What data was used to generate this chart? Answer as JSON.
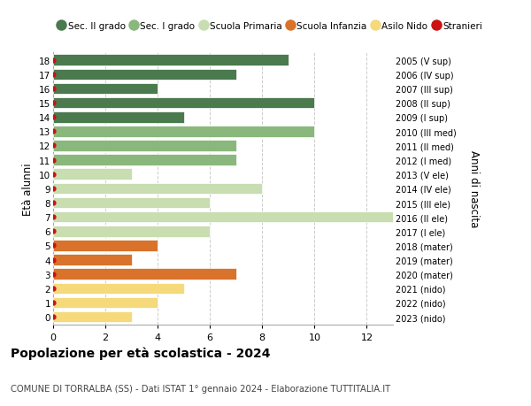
{
  "ages": [
    18,
    17,
    16,
    15,
    14,
    13,
    12,
    11,
    10,
    9,
    8,
    7,
    6,
    5,
    4,
    3,
    2,
    1,
    0
  ],
  "years": [
    "2005 (V sup)",
    "2006 (IV sup)",
    "2007 (III sup)",
    "2008 (II sup)",
    "2009 (I sup)",
    "2010 (III med)",
    "2011 (II med)",
    "2012 (I med)",
    "2013 (V ele)",
    "2014 (IV ele)",
    "2015 (III ele)",
    "2016 (II ele)",
    "2017 (I ele)",
    "2018 (mater)",
    "2019 (mater)",
    "2020 (mater)",
    "2021 (nido)",
    "2022 (nido)",
    "2023 (nido)"
  ],
  "values": [
    9,
    7,
    4,
    10,
    5,
    10,
    7,
    7,
    3,
    8,
    6,
    13,
    6,
    4,
    3,
    7,
    5,
    4,
    3
  ],
  "colors": [
    "#4a7a4e",
    "#4a7a4e",
    "#4a7a4e",
    "#4a7a4e",
    "#4a7a4e",
    "#8ab87c",
    "#8ab87c",
    "#8ab87c",
    "#c8ddb0",
    "#c8ddb0",
    "#c8ddb0",
    "#c8ddb0",
    "#c8ddb0",
    "#d9722a",
    "#d9722a",
    "#d9722a",
    "#f5d97a",
    "#f5d97a",
    "#f5d97a"
  ],
  "legend_labels": [
    "Sec. II grado",
    "Sec. I grado",
    "Scuola Primaria",
    "Scuola Infanzia",
    "Asilo Nido",
    "Stranieri"
  ],
  "legend_colors": [
    "#4a7a4e",
    "#8ab87c",
    "#c8ddb0",
    "#d9722a",
    "#f5d97a",
    "#cc1111"
  ],
  "stranieri_color": "#cc1111",
  "ylabel": "Età alunni",
  "right_label": "Anni di nascita",
  "title": "Popolazione per età scolastica - 2024",
  "subtitle": "COMUNE DI TORRALBA (SS) - Dati ISTAT 1° gennaio 2024 - Elaborazione TUTTITALIA.IT",
  "xlim": [
    0,
    13
  ],
  "ylim_min": -0.55,
  "ylim_max": 18.55,
  "background_color": "#ffffff",
  "bar_height": 0.78,
  "grid_color": "#cccccc",
  "xticks": [
    0,
    2,
    4,
    6,
    8,
    10,
    12
  ]
}
